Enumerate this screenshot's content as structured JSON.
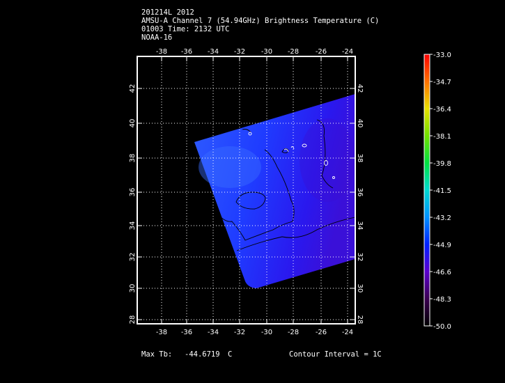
{
  "header": {
    "line1": "201214L 2012",
    "line2": "AMSU-A Channel 7 (54.94GHz) Brightness Temperature (C)",
    "line3": "01003 Time: 2132 UTC",
    "line4": "NOAA-16"
  },
  "map": {
    "lon_ticks": [
      "-38",
      "-36",
      "-34",
      "-32",
      "-30",
      "-28",
      "-26",
      "-24"
    ],
    "lat_ticks": [
      "28",
      "30",
      "32",
      "34",
      "36",
      "38",
      "40",
      "42"
    ],
    "lon_range": [
      -39.5,
      -23.5
    ],
    "lat_range": [
      27.5,
      43.5
    ]
  },
  "colorbar": {
    "labels": [
      "-33.0",
      "-34.7",
      "-36.4",
      "-38.1",
      "-39.8",
      "-41.5",
      "-43.2",
      "-44.9",
      "-46.6",
      "-48.3",
      "-50.0"
    ],
    "range": [
      -50.0,
      -33.0
    ]
  },
  "footer": {
    "max_label": "Max Tb:",
    "max_value": "-44.6719",
    "max_unit": "C",
    "contour": "Contour Interval = 1C"
  }
}
